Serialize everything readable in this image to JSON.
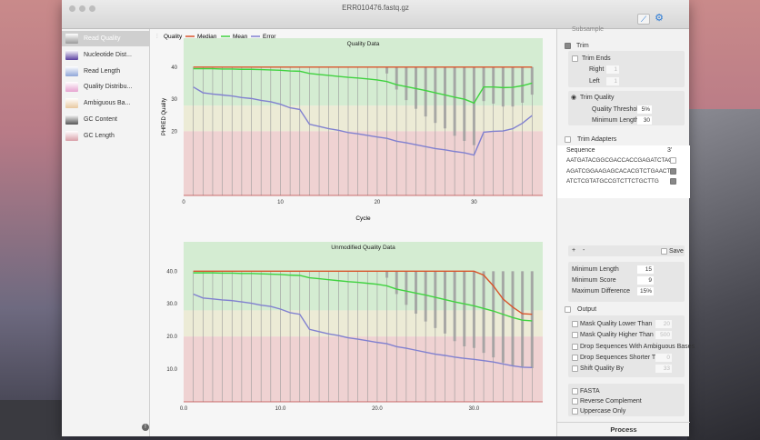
{
  "window": {
    "title": "ERR010476.fastq.gz"
  },
  "toolbar": {
    "chart_icon": "line-chart-icon",
    "settings_icon": "gears-icon"
  },
  "sidebar": {
    "items": [
      {
        "label": "Read Quality",
        "selected": true,
        "color": "#9a9a9a"
      },
      {
        "label": "Nucleotide Dist...",
        "color": "#5a3fa0"
      },
      {
        "label": "Read Length",
        "color": "#8fa6d8"
      },
      {
        "label": "Quality Distribu...",
        "color": "#e6a3d0"
      },
      {
        "label": "Ambiguous Ba...",
        "color": "#e8c9a0"
      },
      {
        "label": "GC Content",
        "color": "#555555"
      },
      {
        "label": "GC Length",
        "color": "#d9a0a8"
      }
    ]
  },
  "legend": {
    "quality": "Quality",
    "median": "Median",
    "mean": "Mean",
    "error": "Error"
  },
  "colors": {
    "median": "#d9542b",
    "mean": "#3fd23f",
    "error": "#8080d0",
    "bars": "#a0a0a0",
    "good": "#d4ecd2",
    "warn": "#ecebd6",
    "bad": "#efd2d2"
  },
  "chart_data": [
    {
      "type": "line",
      "title": "Quality Data",
      "xlabel": "Cycle",
      "ylabel": "PHRED Quality",
      "ylim": [
        0,
        49
      ],
      "xlim": [
        0,
        37.1
      ],
      "xticks": [
        "0",
        "10",
        "20",
        "30"
      ],
      "yticks": [
        "20",
        "30",
        "40"
      ],
      "x": [
        1,
        2,
        3,
        4,
        5,
        6,
        7,
        8,
        9,
        10,
        11,
        12,
        13,
        14,
        15,
        16,
        17,
        18,
        19,
        20,
        21,
        22,
        23,
        24,
        25,
        26,
        27,
        28,
        29,
        30,
        31,
        32,
        33,
        34,
        35,
        36
      ],
      "series": [
        {
          "name": "Median",
          "values": [
            40,
            40,
            40,
            40,
            40,
            40,
            40,
            40,
            40,
            40,
            40,
            40,
            40,
            40,
            40,
            40,
            40,
            40,
            40,
            40,
            40,
            40,
            40,
            40,
            40,
            40,
            40,
            40,
            40,
            40,
            40,
            40,
            40,
            40,
            40,
            40
          ]
        },
        {
          "name": "Mean",
          "values": [
            39.5,
            39.5,
            39.5,
            39.4,
            39.4,
            39.3,
            39.3,
            39.2,
            39.1,
            39,
            38.8,
            38.7,
            38,
            37.7,
            37.4,
            37.1,
            36.8,
            36.6,
            36.3,
            36,
            35.5,
            34.5,
            33.9,
            33.3,
            32.7,
            32,
            31.3,
            30.6,
            30,
            28.8,
            33.8,
            33.8,
            33.6,
            33.7,
            34.2,
            35
          ]
        },
        {
          "name": "Error",
          "values": [
            33.8,
            32,
            31.6,
            31.3,
            31,
            30.5,
            30.2,
            29.6,
            29.2,
            28.4,
            27.3,
            26.8,
            22.2,
            21.5,
            20.8,
            20.3,
            19.6,
            19.2,
            18.7,
            18.2,
            17.8,
            16.9,
            16.4,
            15.8,
            15.2,
            14.6,
            14.2,
            13.7,
            13.3,
            12.6,
            19.7,
            20,
            20.1,
            20.8,
            22.5,
            24.9
          ]
        },
        {
          "name": "Quality",
          "lower": [
            40,
            40,
            40,
            40,
            40,
            40,
            40,
            40,
            40,
            40,
            40,
            40,
            40,
            40,
            40,
            40,
            40,
            40,
            40,
            40,
            38,
            33,
            29.7,
            27,
            24.6,
            22.6,
            20.9,
            18.6,
            17,
            15.7,
            29.4,
            28.6,
            27.7,
            27.7,
            28.9,
            31.4
          ]
        }
      ]
    },
    {
      "type": "line",
      "title": "Unmodified Quality Data",
      "xlabel": "",
      "ylabel": "",
      "ylim": [
        0,
        49
      ],
      "xlim": [
        0,
        37.1
      ],
      "xticks": [
        "0.0",
        "10.0",
        "20.0",
        "30.0"
      ],
      "yticks": [
        "10.0",
        "20.0",
        "30.0",
        "40.0"
      ],
      "x": [
        1,
        2,
        3,
        4,
        5,
        6,
        7,
        8,
        9,
        10,
        11,
        12,
        13,
        14,
        15,
        16,
        17,
        18,
        19,
        20,
        21,
        22,
        23,
        24,
        25,
        26,
        27,
        28,
        29,
        30,
        31,
        32,
        33,
        34,
        35,
        36
      ],
      "series": [
        {
          "name": "Median",
          "values": [
            40,
            40,
            40,
            40,
            40,
            40,
            40,
            40,
            40,
            40,
            40,
            40,
            40,
            40,
            40,
            40,
            40,
            40,
            40,
            40,
            40,
            40,
            40,
            40,
            40,
            40,
            40,
            40,
            40,
            40,
            38.8,
            35.5,
            31.5,
            29,
            27,
            26.8
          ]
        },
        {
          "name": "Mean",
          "values": [
            39.5,
            39.5,
            39.5,
            39.4,
            39.4,
            39.3,
            39.3,
            39.2,
            39.1,
            39,
            38.8,
            38.7,
            38,
            37.7,
            37.4,
            37.1,
            36.8,
            36.6,
            36.3,
            36,
            35.5,
            34.5,
            33.9,
            33.3,
            32.7,
            32,
            31.3,
            30.6,
            30,
            29.4,
            28.6,
            27.8,
            26.8,
            25.8,
            25,
            24.8
          ]
        },
        {
          "name": "Error",
          "values": [
            33,
            31.8,
            31.5,
            31.2,
            31,
            30.6,
            30.2,
            29.6,
            29.2,
            28.4,
            27.3,
            26.8,
            22.2,
            21.5,
            20.8,
            20.3,
            19.6,
            19.2,
            18.7,
            18.2,
            17.8,
            16.9,
            16.4,
            15.8,
            15.2,
            14.6,
            14.2,
            13.7,
            13.3,
            13,
            12.6,
            12.2,
            11.6,
            11,
            10.6,
            10.5
          ]
        },
        {
          "name": "Quality",
          "lower": [
            40,
            40,
            40,
            40,
            40,
            40,
            40,
            40,
            40,
            40,
            40,
            40,
            40,
            40,
            40,
            40,
            40,
            40,
            40,
            40,
            38,
            33,
            29.7,
            27,
            24.6,
            22.6,
            20.9,
            18.6,
            17,
            16.5,
            15,
            13.6,
            12,
            11,
            10.8,
            10.3
          ]
        }
      ]
    }
  ],
  "panel": {
    "subsample": "Subsample",
    "trim": "Trim",
    "trim_ends": "Trim Ends",
    "right": "Right",
    "right_val": "1",
    "left": "Left",
    "left_val": "1",
    "trim_quality": "Trim Quality",
    "quality_threshold": "Quality Threshold",
    "quality_threshold_val": "5%",
    "minimum_length": "Minimum Length",
    "minimum_length_val": "30",
    "trim_adapters": "Trim Adapters",
    "sequence_header": "Sequence",
    "three_prime_header": "3'",
    "adapters": [
      {
        "seq": "AATGATACGGCGACCACCGAGATCTAC",
        "checked": false
      },
      {
        "seq": "AGATCGGAAGAGCACACGTCTGAACTC",
        "checked": true
      },
      {
        "seq": "ATCTCGTATGCCGTCTTCTGCTTG",
        "checked": true
      }
    ],
    "add": "+",
    "remove": "-",
    "save": "Save",
    "min_length": "Minimum Length",
    "min_length_val": "15",
    "min_score": "Minimum Score",
    "min_score_val": "9",
    "max_diff": "Maximum Difference",
    "max_diff_val": "15%",
    "output": "Output",
    "options": [
      {
        "label": "Mask Quality Lower Than",
        "val": "20"
      },
      {
        "label": "Mask Quality Higher Than",
        "val": "500"
      },
      {
        "label": "Drop Sequences With Ambiguous Bases",
        "val": null
      },
      {
        "label": "Drop Sequences Shorter Thai",
        "val": "0"
      },
      {
        "label": "Shift Quality By",
        "val": "33"
      }
    ],
    "fasta": "FASTA",
    "reverse_complement": "Reverse Complement",
    "uppercase": "Uppercase Only",
    "process": "Process"
  }
}
